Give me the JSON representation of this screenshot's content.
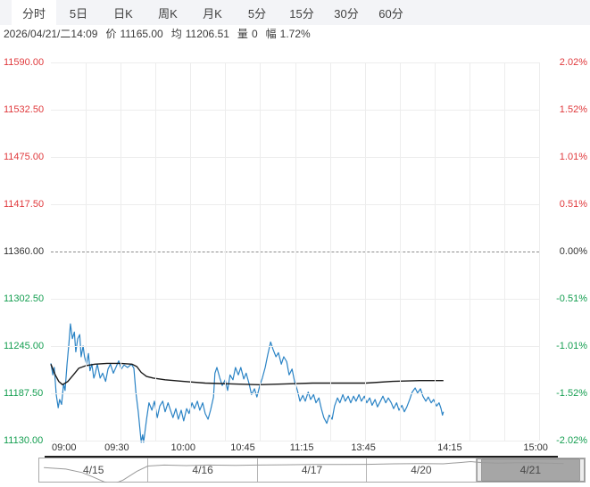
{
  "tabs": {
    "items": [
      {
        "label": "分时",
        "selected": true
      },
      {
        "label": "5日",
        "selected": false
      },
      {
        "label": "日K",
        "selected": false
      },
      {
        "label": "周K",
        "selected": false
      },
      {
        "label": "月K",
        "selected": false
      },
      {
        "label": "5分",
        "selected": false
      },
      {
        "label": "15分",
        "selected": false
      },
      {
        "label": "30分",
        "selected": false
      },
      {
        "label": "60分",
        "selected": false
      }
    ]
  },
  "info": {
    "datetime": "2026/04/21/二14:09",
    "price_label": "价",
    "price": "11165.00",
    "avg_label": "均",
    "avg": "11206.51",
    "vol_label": "量",
    "vol": "0",
    "range_label": "幅",
    "range": "1.72%"
  },
  "colors": {
    "up": "#e0393c",
    "down": "#149e50",
    "flat": "#333333",
    "price_line": "#2a83c5",
    "avg_line": "#1a1a1a",
    "grid": "#ededed",
    "zero_line": "#8c8c8c",
    "tabbar_bg": "#f3f4f7",
    "selected_day_bg": "#a6a6a6",
    "minimap_line": "#9a9a9a"
  },
  "chart_data": {
    "type": "line",
    "ylim": [
      11130,
      11590
    ],
    "baseline": 11360,
    "grid": true,
    "y_axis_left": [
      {
        "label": "11590.00",
        "trend": "up"
      },
      {
        "label": "11532.50",
        "trend": "up"
      },
      {
        "label": "11475.00",
        "trend": "up"
      },
      {
        "label": "11417.50",
        "trend": "up"
      },
      {
        "label": "11360.00",
        "trend": "flat"
      },
      {
        "label": "11302.50",
        "trend": "down"
      },
      {
        "label": "11245.00",
        "trend": "down"
      },
      {
        "label": "11187.50",
        "trend": "down"
      },
      {
        "label": "11130.00",
        "trend": "down"
      }
    ],
    "y_axis_right": [
      {
        "label": "2.02%",
        "trend": "up"
      },
      {
        "label": "1.52%",
        "trend": "up"
      },
      {
        "label": "1.01%",
        "trend": "up"
      },
      {
        "label": "0.51%",
        "trend": "up"
      },
      {
        "label": "0.00%",
        "trend": "flat"
      },
      {
        "label": "-0.51%",
        "trend": "down"
      },
      {
        "label": "-1.01%",
        "trend": "down"
      },
      {
        "label": "-1.52%",
        "trend": "down"
      },
      {
        "label": "-2.02%",
        "trend": "down"
      }
    ],
    "x_ticks": [
      {
        "label": "09:00",
        "x": 0.027
      },
      {
        "label": "09:30",
        "x": 0.135
      },
      {
        "label": "10:00",
        "x": 0.271
      },
      {
        "label": "10:45",
        "x": 0.393
      },
      {
        "label": "11:15",
        "x": 0.514
      },
      {
        "label": "13:45",
        "x": 0.64
      },
      {
        "label": "14:15",
        "x": 0.817
      },
      {
        "label": "15:00",
        "x": 0.993
      }
    ],
    "series": [
      {
        "name": "price",
        "color": "#2a83c5",
        "points": [
          [
            0.0,
            11224
          ],
          [
            0.004,
            11210
          ],
          [
            0.007,
            11219
          ],
          [
            0.011,
            11186
          ],
          [
            0.015,
            11170
          ],
          [
            0.018,
            11180
          ],
          [
            0.022,
            11174
          ],
          [
            0.026,
            11199
          ],
          [
            0.029,
            11191
          ],
          [
            0.033,
            11223
          ],
          [
            0.037,
            11248
          ],
          [
            0.04,
            11272
          ],
          [
            0.044,
            11254
          ],
          [
            0.048,
            11262
          ],
          [
            0.051,
            11238
          ],
          [
            0.055,
            11254
          ],
          [
            0.059,
            11259
          ],
          [
            0.062,
            11232
          ],
          [
            0.066,
            11245
          ],
          [
            0.069,
            11232
          ],
          [
            0.073,
            11223
          ],
          [
            0.077,
            11236
          ],
          [
            0.08,
            11215
          ],
          [
            0.084,
            11223
          ],
          [
            0.088,
            11206
          ],
          [
            0.091,
            11212
          ],
          [
            0.095,
            11223
          ],
          [
            0.101,
            11206
          ],
          [
            0.106,
            11212
          ],
          [
            0.112,
            11202
          ],
          [
            0.117,
            11217
          ],
          [
            0.122,
            11223
          ],
          [
            0.128,
            11212
          ],
          [
            0.133,
            11219
          ],
          [
            0.139,
            11227
          ],
          [
            0.144,
            11217
          ],
          [
            0.15,
            11222
          ],
          [
            0.157,
            11219
          ],
          [
            0.165,
            11223
          ],
          [
            0.17,
            11218
          ],
          [
            0.174,
            11189
          ],
          [
            0.179,
            11165
          ],
          [
            0.185,
            11128
          ],
          [
            0.188,
            11137
          ],
          [
            0.19,
            11128
          ],
          [
            0.196,
            11156
          ],
          [
            0.201,
            11176
          ],
          [
            0.207,
            11167
          ],
          [
            0.212,
            11178
          ],
          [
            0.218,
            11158
          ],
          [
            0.223,
            11172
          ],
          [
            0.229,
            11178
          ],
          [
            0.234,
            11165
          ],
          [
            0.24,
            11176
          ],
          [
            0.245,
            11167
          ],
          [
            0.25,
            11158
          ],
          [
            0.256,
            11169
          ],
          [
            0.261,
            11156
          ],
          [
            0.267,
            11167
          ],
          [
            0.272,
            11154
          ],
          [
            0.278,
            11169
          ],
          [
            0.283,
            11163
          ],
          [
            0.289,
            11176
          ],
          [
            0.294,
            11169
          ],
          [
            0.3,
            11178
          ],
          [
            0.305,
            11167
          ],
          [
            0.311,
            11176
          ],
          [
            0.316,
            11163
          ],
          [
            0.322,
            11156
          ],
          [
            0.327,
            11167
          ],
          [
            0.333,
            11183
          ],
          [
            0.336,
            11212
          ],
          [
            0.34,
            11219
          ],
          [
            0.346,
            11206
          ],
          [
            0.351,
            11197
          ],
          [
            0.357,
            11204
          ],
          [
            0.362,
            11191
          ],
          [
            0.367,
            11210
          ],
          [
            0.373,
            11204
          ],
          [
            0.378,
            11219
          ],
          [
            0.384,
            11210
          ],
          [
            0.389,
            11219
          ],
          [
            0.395,
            11205
          ],
          [
            0.4,
            11212
          ],
          [
            0.406,
            11199
          ],
          [
            0.411,
            11186
          ],
          [
            0.417,
            11193
          ],
          [
            0.422,
            11183
          ],
          [
            0.428,
            11197
          ],
          [
            0.433,
            11206
          ],
          [
            0.439,
            11219
          ],
          [
            0.444,
            11234
          ],
          [
            0.45,
            11250
          ],
          [
            0.455,
            11241
          ],
          [
            0.461,
            11232
          ],
          [
            0.466,
            11237
          ],
          [
            0.472,
            11223
          ],
          [
            0.477,
            11232
          ],
          [
            0.483,
            11226
          ],
          [
            0.488,
            11210
          ],
          [
            0.494,
            11217
          ],
          [
            0.499,
            11202
          ],
          [
            0.505,
            11191
          ],
          [
            0.51,
            11178
          ],
          [
            0.516,
            11185
          ],
          [
            0.521,
            11178
          ],
          [
            0.527,
            11189
          ],
          [
            0.532,
            11180
          ],
          [
            0.538,
            11186
          ],
          [
            0.543,
            11176
          ],
          [
            0.549,
            11182
          ],
          [
            0.554,
            11169
          ],
          [
            0.559,
            11158
          ],
          [
            0.565,
            11151
          ],
          [
            0.57,
            11161
          ],
          [
            0.576,
            11156
          ],
          [
            0.581,
            11172
          ],
          [
            0.587,
            11182
          ],
          [
            0.592,
            11176
          ],
          [
            0.598,
            11186
          ],
          [
            0.603,
            11178
          ],
          [
            0.609,
            11184
          ],
          [
            0.614,
            11176
          ],
          [
            0.62,
            11184
          ],
          [
            0.625,
            11178
          ],
          [
            0.631,
            11186
          ],
          [
            0.636,
            11178
          ],
          [
            0.642,
            11184
          ],
          [
            0.647,
            11176
          ],
          [
            0.653,
            11182
          ],
          [
            0.658,
            11173
          ],
          [
            0.664,
            11180
          ],
          [
            0.669,
            11171
          ],
          [
            0.675,
            11178
          ],
          [
            0.68,
            11184
          ],
          [
            0.686,
            11176
          ],
          [
            0.691,
            11182
          ],
          [
            0.697,
            11176
          ],
          [
            0.702,
            11169
          ],
          [
            0.708,
            11176
          ],
          [
            0.713,
            11167
          ],
          [
            0.719,
            11173
          ],
          [
            0.724,
            11165
          ],
          [
            0.729,
            11171
          ],
          [
            0.735,
            11180
          ],
          [
            0.74,
            11189
          ],
          [
            0.746,
            11194
          ],
          [
            0.751,
            11188
          ],
          [
            0.757,
            11193
          ],
          [
            0.762,
            11184
          ],
          [
            0.768,
            11178
          ],
          [
            0.773,
            11183
          ],
          [
            0.779,
            11176
          ],
          [
            0.784,
            11180
          ],
          [
            0.79,
            11172
          ],
          [
            0.795,
            11176
          ],
          [
            0.799,
            11169
          ],
          [
            0.802,
            11161
          ],
          [
            0.804,
            11165
          ]
        ]
      },
      {
        "name": "average",
        "color": "#1a1a1a",
        "points": [
          [
            0.0,
            11223
          ],
          [
            0.009,
            11210
          ],
          [
            0.016,
            11202
          ],
          [
            0.024,
            11198
          ],
          [
            0.035,
            11202
          ],
          [
            0.046,
            11210
          ],
          [
            0.057,
            11218
          ],
          [
            0.071,
            11221
          ],
          [
            0.09,
            11223
          ],
          [
            0.115,
            11224
          ],
          [
            0.143,
            11224
          ],
          [
            0.166,
            11223
          ],
          [
            0.176,
            11220
          ],
          [
            0.185,
            11213
          ],
          [
            0.196,
            11208
          ],
          [
            0.21,
            11206
          ],
          [
            0.234,
            11204
          ],
          [
            0.271,
            11202
          ],
          [
            0.316,
            11200
          ],
          [
            0.371,
            11199
          ],
          [
            0.426,
            11198
          ],
          [
            0.481,
            11199
          ],
          [
            0.536,
            11200
          ],
          [
            0.59,
            11200
          ],
          [
            0.645,
            11200
          ],
          [
            0.7,
            11202
          ],
          [
            0.755,
            11203
          ],
          [
            0.804,
            11203
          ]
        ]
      }
    ]
  },
  "navigator": {
    "days": [
      {
        "label": "4/15",
        "selected": false
      },
      {
        "label": "4/16",
        "selected": false
      },
      {
        "label": "4/17",
        "selected": false
      },
      {
        "label": "4/20",
        "selected": false
      },
      {
        "label": "4/21",
        "selected": true
      }
    ],
    "overview_line": [
      [
        0.01,
        0.4
      ],
      [
        0.05,
        0.46
      ],
      [
        0.08,
        0.6
      ],
      [
        0.1,
        0.78
      ],
      [
        0.12,
        0.97
      ],
      [
        0.135,
        1.08
      ],
      [
        0.155,
        0.9
      ],
      [
        0.18,
        0.55
      ],
      [
        0.2,
        0.34
      ],
      [
        0.23,
        0.3
      ],
      [
        0.27,
        0.32
      ],
      [
        0.31,
        0.3
      ],
      [
        0.36,
        0.31
      ],
      [
        0.4,
        0.3
      ],
      [
        0.45,
        0.29
      ],
      [
        0.5,
        0.28
      ],
      [
        0.55,
        0.28
      ],
      [
        0.6,
        0.27
      ],
      [
        0.65,
        0.25
      ],
      [
        0.7,
        0.24
      ],
      [
        0.74,
        0.25
      ],
      [
        0.77,
        0.2
      ],
      [
        0.79,
        0.16
      ],
      [
        0.81,
        0.2
      ],
      [
        0.84,
        0.22
      ],
      [
        0.87,
        0.21
      ],
      [
        0.9,
        0.21
      ],
      [
        0.93,
        0.22
      ],
      [
        0.96,
        0.24
      ]
    ]
  }
}
